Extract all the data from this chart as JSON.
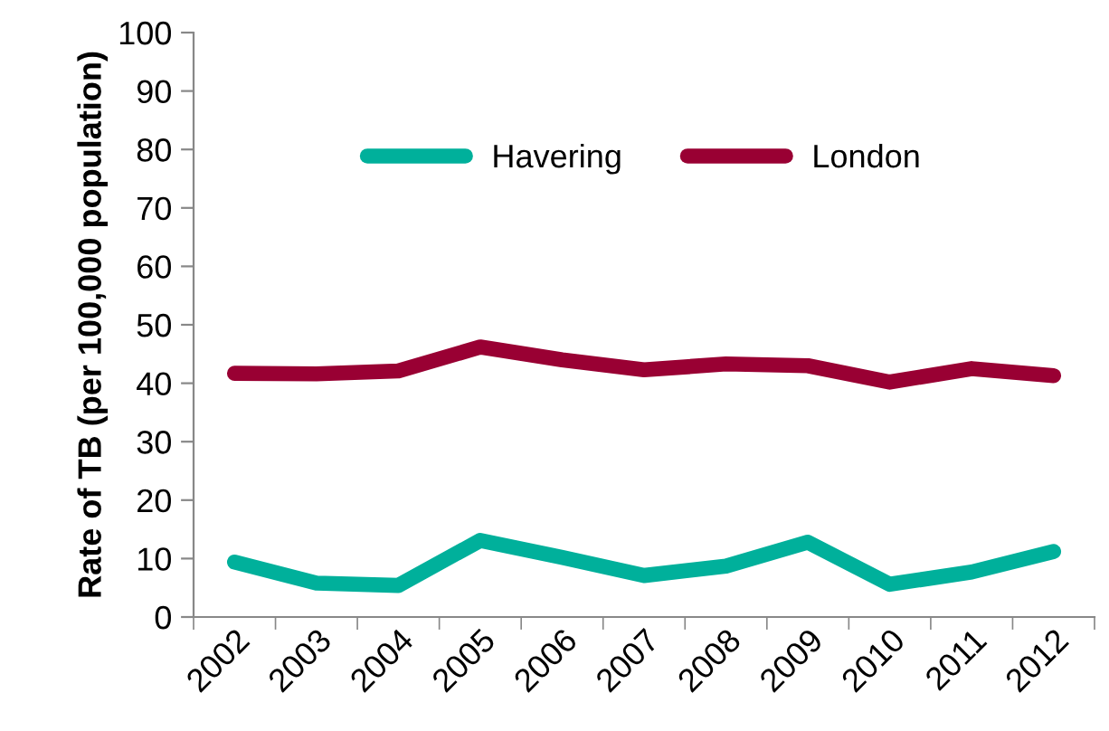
{
  "chart_data": {
    "type": "line",
    "ylabel": "Rate of TB (per 100,000 population)",
    "categories": [
      "2002",
      "2003",
      "2004",
      "2005",
      "2006",
      "2007",
      "2008",
      "2009",
      "2010",
      "2011",
      "2012"
    ],
    "series": [
      {
        "name": "Havering",
        "color": "#00b09b",
        "values": [
          9.4,
          5.8,
          5.4,
          13.1,
          10.2,
          7.1,
          8.7,
          12.8,
          5.6,
          7.7,
          11.2
        ]
      },
      {
        "name": "London",
        "color": "#990033",
        "values": [
          41.7,
          41.6,
          42.1,
          46.2,
          44.0,
          42.3,
          43.3,
          43.0,
          40.2,
          42.5,
          41.3
        ]
      }
    ],
    "ylim": [
      0,
      100
    ],
    "yticks": [
      0,
      10,
      20,
      30,
      40,
      50,
      60,
      70,
      80,
      90,
      100
    ],
    "grid": false,
    "legend": "top",
    "marker": "none",
    "line_style": "solid"
  }
}
